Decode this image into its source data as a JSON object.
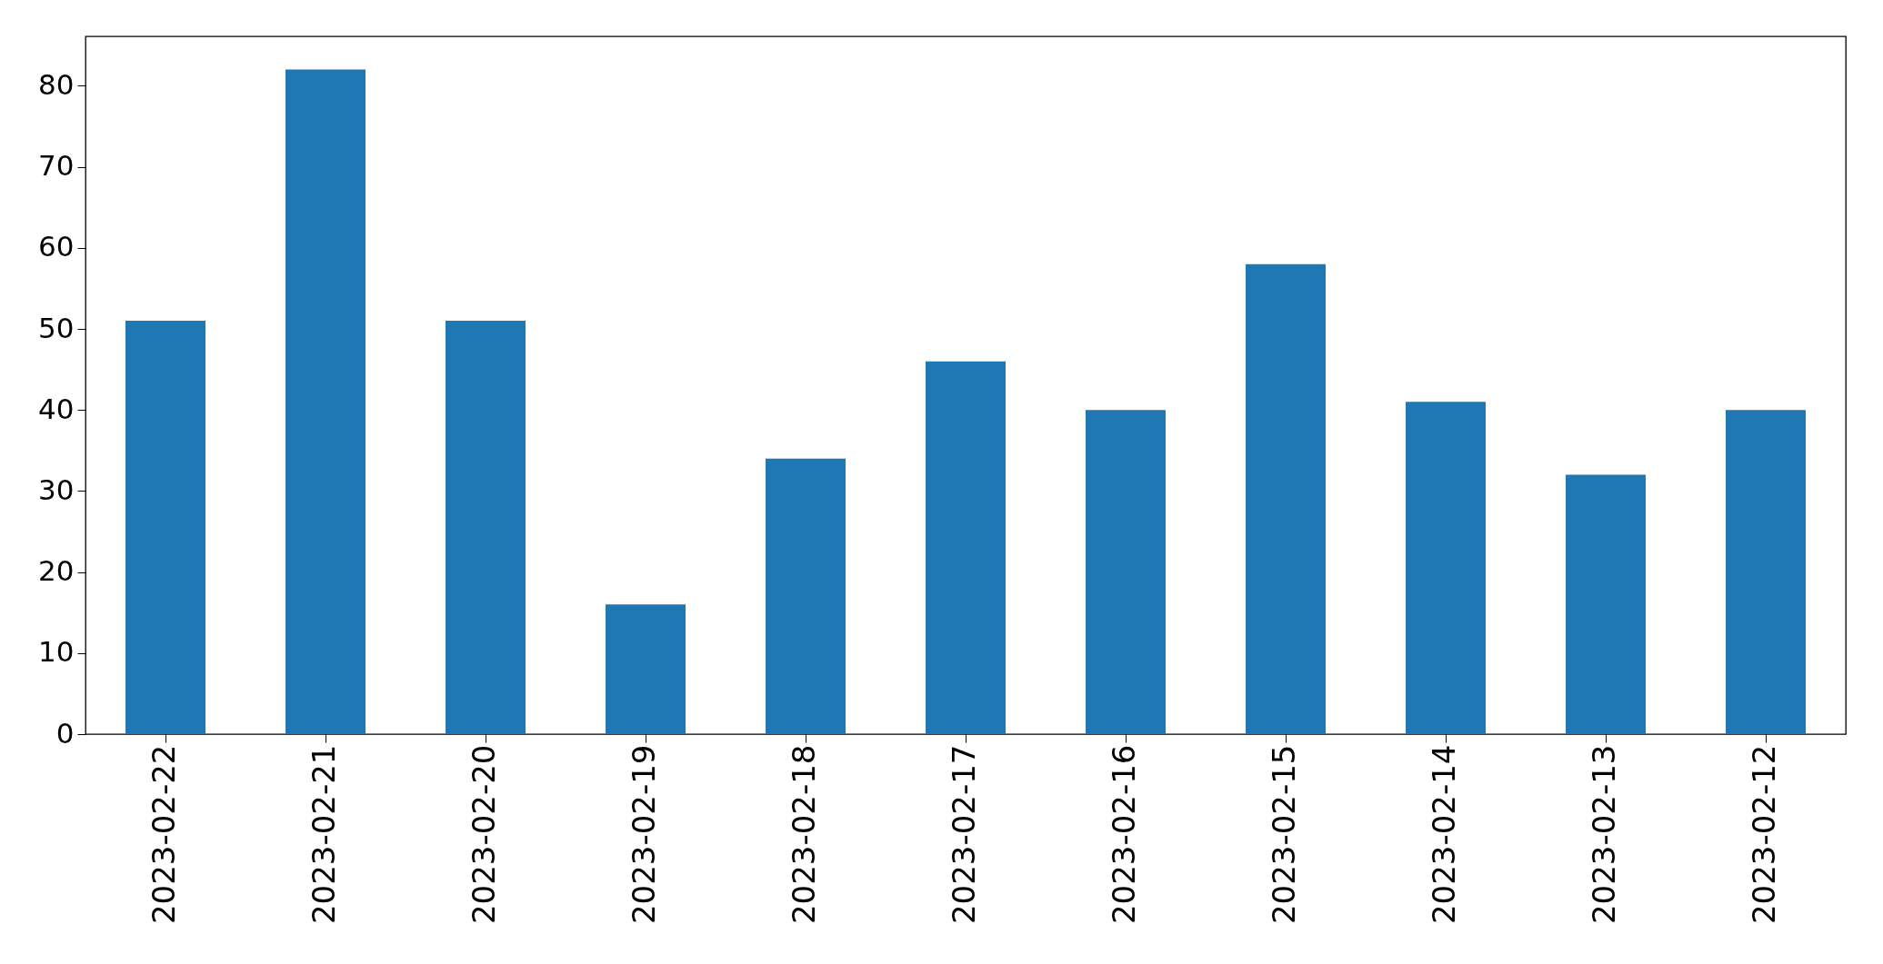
{
  "chart_data": {
    "type": "bar",
    "categories": [
      "2023-02-22",
      "2023-02-21",
      "2023-02-20",
      "2023-02-19",
      "2023-02-18",
      "2023-02-17",
      "2023-02-16",
      "2023-02-15",
      "2023-02-14",
      "2023-02-13",
      "2023-02-12"
    ],
    "values": [
      51,
      82,
      51,
      16,
      34,
      46,
      40,
      58,
      41,
      32,
      40
    ],
    "color": "#1f77b4",
    "ylim": [
      0,
      86.1
    ],
    "yticks": [
      0,
      10,
      20,
      30,
      40,
      50,
      60,
      70,
      80
    ],
    "grid": false
  }
}
